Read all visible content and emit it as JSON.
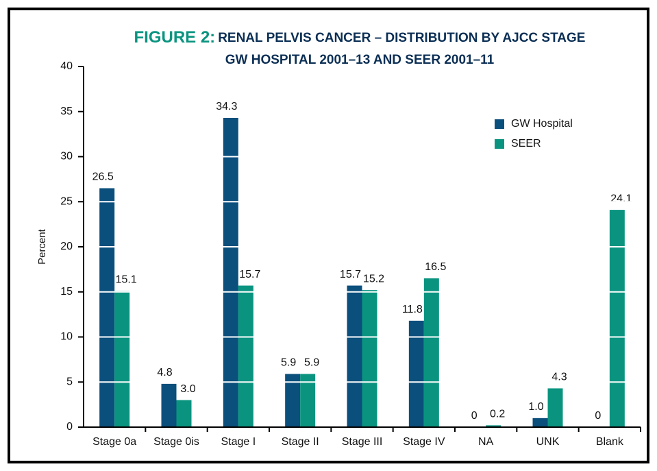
{
  "chart_data": {
    "type": "bar",
    "figure_label": "FIGURE 2:",
    "title": "RENAL PELVIS CANCER – DISTRIBUTION BY AJCC STAGE",
    "subtitle": "GW HOSPITAL 2001–13 AND SEER 2001–11",
    "y_label": "Percent",
    "categories": [
      "Stage 0a",
      "Stage 0is",
      "Stage I",
      "Stage II",
      "Stage III",
      "Stage IV",
      "NA",
      "UNK",
      "Blank"
    ],
    "series": [
      {
        "name": "GW Hospital",
        "color": "#0b4f7c",
        "values": [
          26.5,
          4.8,
          34.3,
          5.9,
          15.7,
          11.8,
          0,
          1.0,
          0
        ],
        "value_labels": [
          "26.5",
          "4.8",
          "34.3",
          "5.9",
          "15.7",
          "11.8",
          "0",
          "1.0",
          "0"
        ]
      },
      {
        "name": "SEER",
        "color": "#0a9480",
        "values": [
          15.1,
          3.0,
          15.7,
          5.9,
          15.2,
          16.5,
          0.2,
          4.3,
          24.1
        ],
        "value_labels": [
          "15.1",
          "3.0",
          "15.7",
          "5.9",
          "15.2",
          "16.5",
          "0.2",
          "4.3",
          "24.1"
        ]
      }
    ],
    "ylim": [
      0,
      40
    ],
    "yticks": [
      0,
      5,
      10,
      15,
      20,
      25,
      30,
      35,
      40
    ],
    "grid": true,
    "legend": "upper right"
  }
}
